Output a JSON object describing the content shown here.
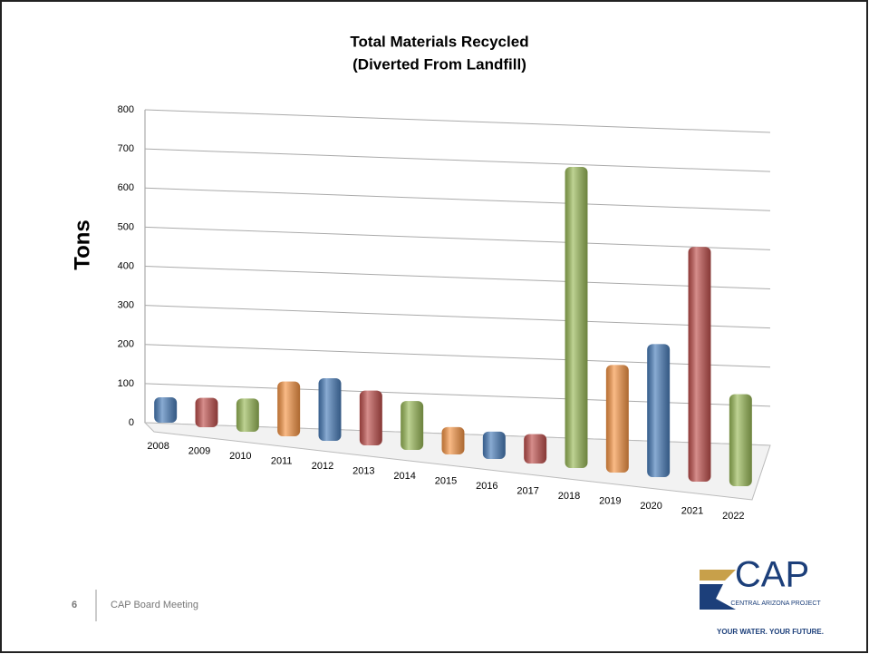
{
  "chart_data": {
    "type": "bar",
    "title": [
      "Total Materials Recycled",
      "(Diverted From Landfill)"
    ],
    "ylabel": "Tons",
    "categories": [
      "2008",
      "2009",
      "2010",
      "2011",
      "2012",
      "2013",
      "2014",
      "2015",
      "2016",
      "2017",
      "2018",
      "2019",
      "2020",
      "2021",
      "2022"
    ],
    "values": [
      65,
      75,
      85,
      140,
      160,
      140,
      125,
      70,
      70,
      75,
      770,
      275,
      340,
      600,
      235
    ],
    "colors": [
      "#4a7ebb",
      "#c0504d",
      "#9bbb59",
      "#f79646",
      "#4a7ebb",
      "#c0504d",
      "#9bbb59",
      "#f79646",
      "#4a7ebb",
      "#c0504d",
      "#9bbb59",
      "#f79646",
      "#4a7ebb",
      "#c0504d",
      "#9bbb59"
    ],
    "ylim": [
      0,
      800
    ],
    "yticks": [
      0,
      100,
      200,
      300,
      400,
      500,
      600,
      700,
      800
    ],
    "grid": true
  },
  "footer": {
    "page": "6",
    "text": "CAP Board Meeting"
  },
  "logo": {
    "name": "CAP",
    "org": "CENTRAL ARIZONA PROJECT",
    "tagline": "YOUR WATER. YOUR FUTURE."
  }
}
